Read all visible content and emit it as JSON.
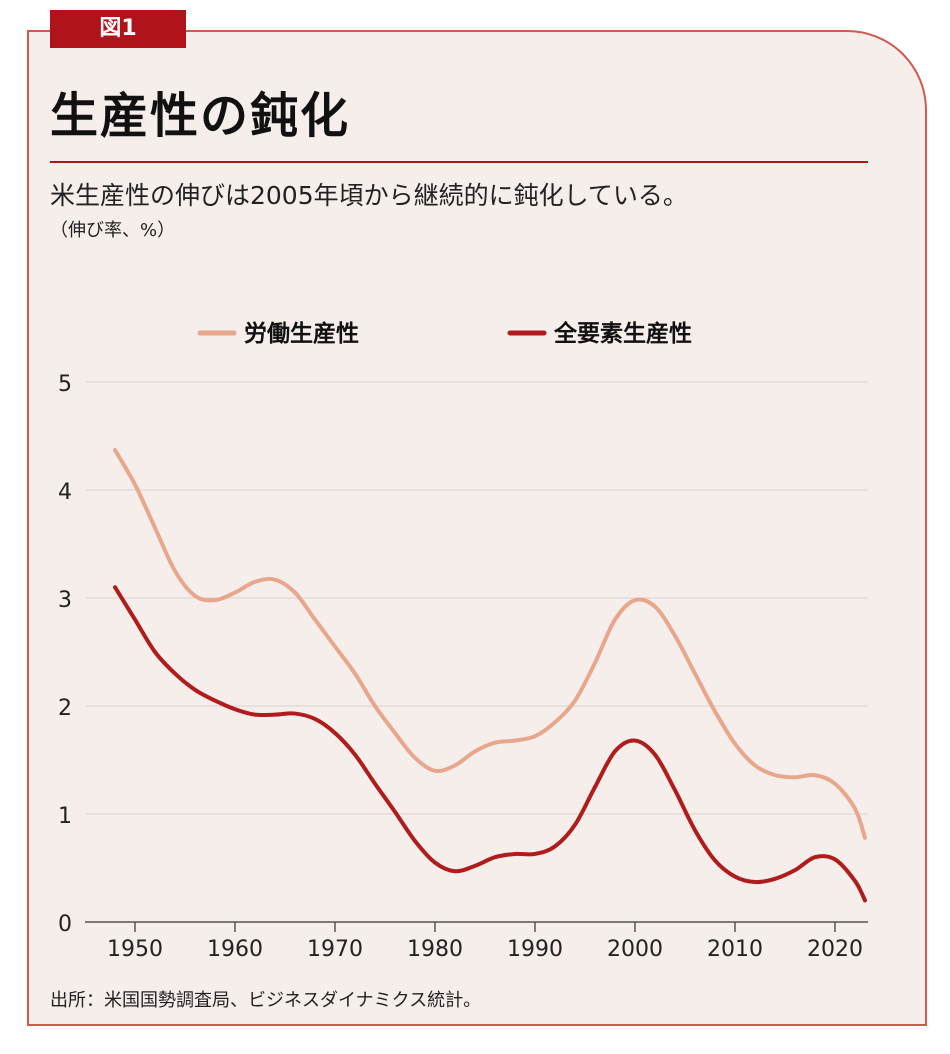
{
  "figure_label": "図1",
  "title": "生産性の鈍化",
  "subtitle": "米生産性の伸びは2005年頃から継続的に鈍化している。",
  "unit_note": "（伸び率、%）",
  "source": "出所：米国国勢調査局、ビジネスダイナミクス統計。",
  "colors": {
    "accent": "#b0141a",
    "labor": "#e8a78d",
    "tfp": "#b01c1c",
    "background": "#f5eeeb"
  },
  "chart_data": {
    "type": "line",
    "xlabel": "",
    "ylabel": "",
    "xlim": [
      1946,
      2024
    ],
    "ylim": [
      0,
      5
    ],
    "x_ticks": [
      "1950",
      "1960",
      "1970",
      "1980",
      "1990",
      "2000",
      "2010",
      "2020"
    ],
    "y_ticks": [
      "0",
      "1",
      "2",
      "3",
      "4",
      "5"
    ],
    "grid": true,
    "legend": "top",
    "x": [
      1948,
      1950,
      1952,
      1954,
      1956,
      1958,
      1960,
      1962,
      1964,
      1966,
      1968,
      1970,
      1972,
      1974,
      1976,
      1978,
      1980,
      1982,
      1984,
      1986,
      1988,
      1990,
      1992,
      1994,
      1996,
      1998,
      2000,
      2002,
      2004,
      2006,
      2008,
      2010,
      2012,
      2014,
      2016,
      2018,
      2020,
      2022,
      2023
    ],
    "series": [
      {
        "name": "労働生産性",
        "color": "#e8a78d",
        "values": [
          4.37,
          4.05,
          3.65,
          3.25,
          3.02,
          2.98,
          3.05,
          3.15,
          3.17,
          3.05,
          2.8,
          2.55,
          2.3,
          2.0,
          1.75,
          1.52,
          1.4,
          1.45,
          1.58,
          1.66,
          1.68,
          1.72,
          1.85,
          2.05,
          2.4,
          2.8,
          2.98,
          2.92,
          2.65,
          2.3,
          1.95,
          1.65,
          1.45,
          1.36,
          1.34,
          1.36,
          1.28,
          1.05,
          0.78
        ]
      },
      {
        "name": "全要素生産性",
        "color": "#b01c1c",
        "values": [
          3.1,
          2.8,
          2.5,
          2.3,
          2.15,
          2.05,
          1.97,
          1.92,
          1.92,
          1.93,
          1.88,
          1.75,
          1.55,
          1.28,
          1.02,
          0.75,
          0.55,
          0.47,
          0.52,
          0.6,
          0.63,
          0.63,
          0.7,
          0.9,
          1.25,
          1.58,
          1.68,
          1.55,
          1.22,
          0.85,
          0.57,
          0.42,
          0.37,
          0.4,
          0.48,
          0.6,
          0.58,
          0.38,
          0.2
        ]
      }
    ]
  }
}
